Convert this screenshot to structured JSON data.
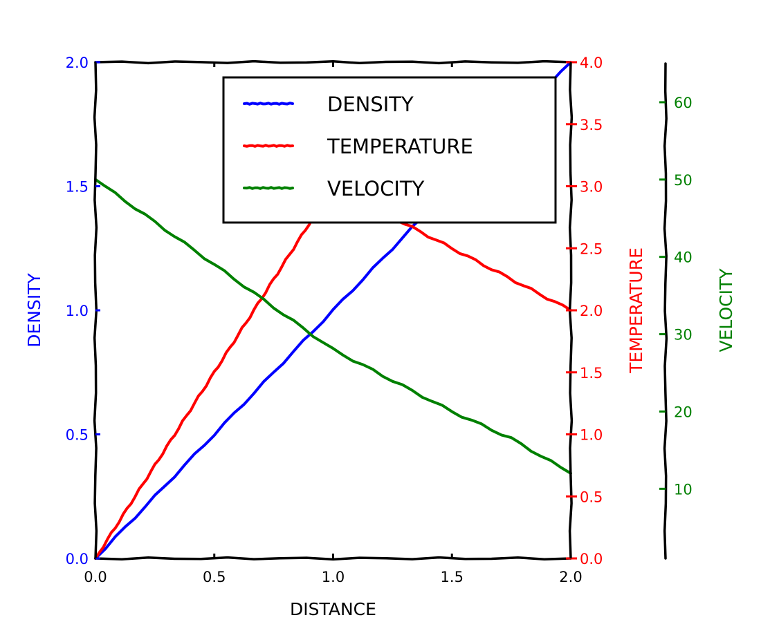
{
  "chart_data": {
    "type": "line",
    "xlabel": "DISTANCE",
    "xlim": [
      0.0,
      2.0
    ],
    "xticks": [
      "0.0",
      "0.5",
      "1.0",
      "1.5",
      "2.0"
    ],
    "axes": [
      {
        "key": "density",
        "label": "DENSITY",
        "color": "#0000ff",
        "ylim": [
          0.0,
          2.0
        ],
        "ticks": [
          "0.0",
          "0.5",
          "1.0",
          "1.5",
          "2.0"
        ]
      },
      {
        "key": "temperature",
        "label": "TEMPERATURE",
        "color": "#ff0000",
        "ylim": [
          0.0,
          4.0
        ],
        "ticks": [
          "0.0",
          "0.5",
          "1.0",
          "1.5",
          "2.0",
          "2.5",
          "3.0",
          "3.5",
          "4.0"
        ]
      },
      {
        "key": "velocity",
        "label": "VELOCITY",
        "color": "#008000",
        "ylim": [
          1,
          65
        ],
        "ticks": [
          "10",
          "20",
          "30",
          "40",
          "50",
          "60"
        ]
      }
    ],
    "series": [
      {
        "name": "DENSITY",
        "axis": "density",
        "color": "#0000ff",
        "x": [
          0.0,
          0.25,
          0.5,
          0.75,
          1.0,
          1.25,
          1.5,
          1.75,
          2.0
        ],
        "y": [
          0.0,
          0.25,
          0.5,
          0.75,
          1.0,
          1.25,
          1.5,
          1.75,
          2.0
        ]
      },
      {
        "name": "TEMPERATURE",
        "axis": "temperature",
        "color": "#ff0000",
        "x": [
          0.0,
          0.1,
          0.2,
          0.3,
          0.4,
          0.5,
          0.6,
          0.7,
          0.8,
          0.9,
          1.0,
          1.2,
          1.4,
          1.6,
          1.8,
          2.0
        ],
        "y": [
          0.0,
          0.3,
          0.6,
          0.9,
          1.2,
          1.5,
          1.8,
          2.1,
          2.4,
          2.7,
          3.0,
          2.8,
          2.6,
          2.4,
          2.2,
          2.0
        ]
      },
      {
        "name": "VELOCITY",
        "axis": "velocity",
        "color": "#008000",
        "x": [
          0.0,
          0.25,
          0.5,
          0.75,
          1.0,
          1.25,
          1.5,
          1.75,
          2.0
        ],
        "y": [
          50,
          44.5,
          39,
          33.5,
          28,
          24,
          20,
          16.5,
          12
        ]
      }
    ],
    "legend": {
      "placement": "top-center"
    }
  }
}
